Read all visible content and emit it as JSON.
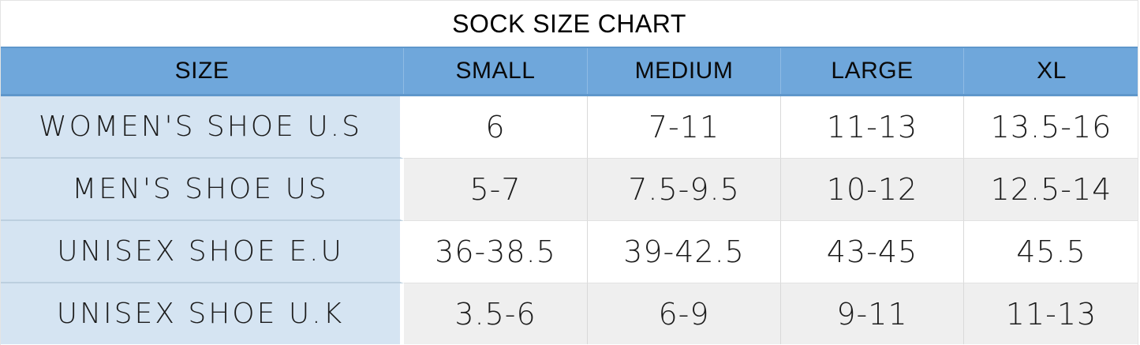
{
  "colors": {
    "header_blue": "#6fa7db",
    "header_border_blue": "#5f97cb",
    "label_column_blue": "#d5e4f2",
    "shaded_row_gray": "#efefef",
    "text_black": "#1c1c1c"
  },
  "chart_data": {
    "type": "table",
    "title": "SOCK SIZE CHART",
    "columns": [
      "SIZE",
      "SMALL",
      "MEDIUM",
      "LARGE",
      "XL"
    ],
    "rows": [
      {
        "label": "WOMEN'S SHOE U.S",
        "values": [
          "6",
          "7-11",
          "11-13",
          "13.5-16"
        ]
      },
      {
        "label": "MEN'S SHOE US",
        "values": [
          "5-7",
          "7.5-9.5",
          "10-12",
          "12.5-14"
        ]
      },
      {
        "label": "UNISEX SHOE E.U",
        "values": [
          "36-38.5",
          "39-42.5",
          "43-45",
          "45.5"
        ]
      },
      {
        "label": "UNISEX SHOE U.K",
        "values": [
          "3.5-6",
          "6-9",
          "9-11",
          "11-13"
        ]
      }
    ]
  }
}
